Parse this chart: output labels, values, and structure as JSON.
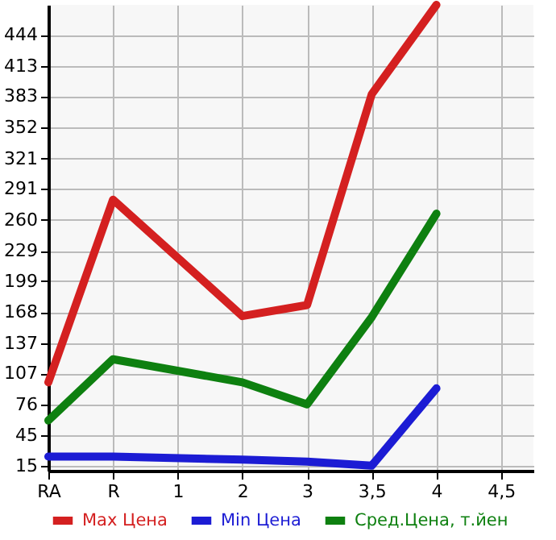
{
  "chart_data": {
    "type": "line",
    "categories": [
      "RA",
      "R",
      "1",
      "2",
      "3",
      "3,5",
      "4",
      "4,5"
    ],
    "series": [
      {
        "name": "Max Цена",
        "color": "#d42020",
        "values": [
          98,
          280,
          null,
          164,
          175,
          385,
          474,
          null
        ]
      },
      {
        "name": "Min Цена",
        "color": "#1c1cd4",
        "values": [
          24,
          24,
          null,
          21,
          19,
          15,
          92,
          null
        ]
      },
      {
        "name": "Сред.Цена, т.йен",
        "color": "#0e8010",
        "values": [
          60,
          121,
          null,
          98,
          76,
          163,
          266,
          null
        ]
      }
    ],
    "ylim": [
      10,
      474
    ],
    "yticks": [
      15,
      45,
      76,
      107,
      137,
      168,
      199,
      229,
      260,
      291,
      321,
      352,
      383,
      413,
      444
    ],
    "grid": true,
    "legend": "bottom",
    "marker": "none",
    "line_style": "solid"
  }
}
